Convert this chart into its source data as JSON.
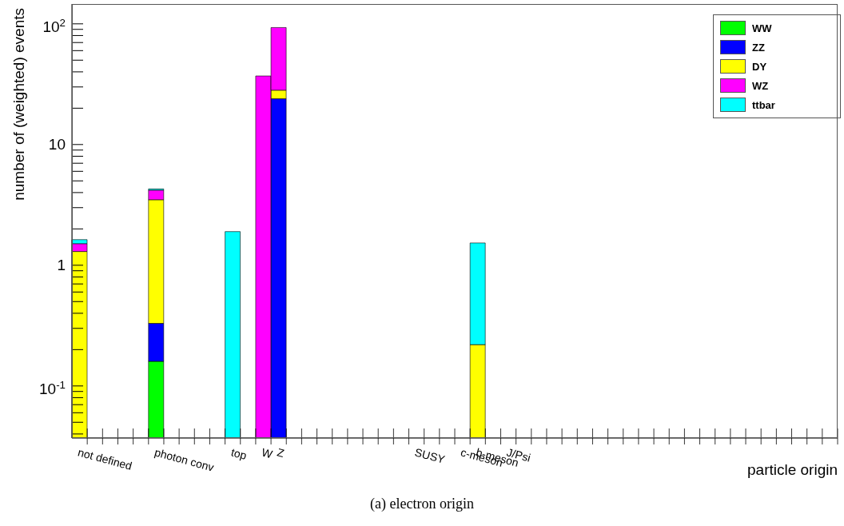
{
  "chart_data": {
    "type": "bar",
    "stacked": true,
    "log": "y",
    "grid": false,
    "legend": "top right",
    "xlabel": "particle origin",
    "ylabel": "number of (weighted) events",
    "annotations": [
      "(a) electron origin"
    ],
    "categories": [
      "not defined",
      null,
      null,
      null,
      null,
      "photon conv",
      null,
      null,
      null,
      null,
      "top",
      null,
      "W",
      "Z",
      null,
      null,
      null,
      null,
      null,
      null,
      null,
      null,
      "SUSY",
      null,
      null,
      "c-meson",
      "b-meson",
      null,
      "J/Psi",
      null,
      null,
      null,
      null,
      null,
      null,
      null,
      null,
      null,
      null,
      null,
      null,
      null,
      null,
      null,
      null,
      null,
      null,
      null,
      null,
      null
    ],
    "ylim": [
      0.037,
      146
    ],
    "yticks": [
      {
        "value": 0.04,
        "label": null
      },
      {
        "value": 0.05,
        "label": null
      },
      {
        "value": 0.06,
        "label": null
      },
      {
        "value": 0.07,
        "label": null
      },
      {
        "value": 0.08,
        "label": null
      },
      {
        "value": 0.09,
        "label": null
      },
      {
        "value": 0.1,
        "label": "10$^{-1}$"
      },
      {
        "value": 0.2,
        "label": null
      },
      {
        "value": 0.3,
        "label": null
      },
      {
        "value": 0.4,
        "label": null
      },
      {
        "value": 0.5,
        "label": null
      },
      {
        "value": 0.6,
        "label": null
      },
      {
        "value": 0.7,
        "label": null
      },
      {
        "value": 0.8,
        "label": null
      },
      {
        "value": 0.9,
        "label": null
      },
      1,
      {
        "value": 2,
        "label": null
      },
      {
        "value": 3,
        "label": null
      },
      {
        "value": 4,
        "label": null
      },
      {
        "value": 5,
        "label": null
      },
      {
        "value": 6,
        "label": null
      },
      {
        "value": 7,
        "label": null
      },
      {
        "value": 8,
        "label": null
      },
      {
        "value": 9,
        "label": null
      },
      10,
      {
        "value": 20,
        "label": null
      },
      {
        "value": 30,
        "label": null
      },
      {
        "value": 40,
        "label": null
      },
      {
        "value": 50,
        "label": null
      },
      {
        "value": 60,
        "label": null
      },
      {
        "value": 70,
        "label": null
      },
      {
        "value": 80,
        "label": null
      },
      {
        "value": 90,
        "label": null
      },
      {
        "value": 100,
        "label": "10$^{2}$"
      }
    ],
    "series": [
      {
        "name": "WW",
        "color": "#00ff00",
        "values": [
          null,
          null,
          null,
          null,
          null,
          0.16,
          null,
          null,
          null,
          null,
          null,
          null,
          null,
          null,
          null,
          null,
          null,
          null,
          null,
          null,
          null,
          null,
          null,
          null,
          null,
          null,
          null,
          null,
          null,
          null,
          null,
          null,
          null,
          null,
          null,
          null,
          null,
          null,
          null,
          null,
          null,
          null,
          null,
          null,
          null,
          null,
          null,
          null,
          null,
          null
        ]
      },
      {
        "name": "ZZ",
        "color": "#0000ff",
        "values": [
          null,
          null,
          null,
          null,
          null,
          0.17,
          null,
          null,
          null,
          null,
          null,
          null,
          null,
          24,
          null,
          null,
          null,
          null,
          null,
          null,
          null,
          null,
          null,
          null,
          null,
          null,
          null,
          null,
          null,
          null,
          null,
          null,
          null,
          null,
          null,
          null,
          null,
          null,
          null,
          null,
          null,
          null,
          null,
          null,
          null,
          null,
          null,
          null,
          null,
          null
        ]
      },
      {
        "name": "DY",
        "color": "#ffff00",
        "values": [
          1.3,
          null,
          null,
          null,
          null,
          3.16,
          null,
          null,
          null,
          null,
          null,
          null,
          null,
          4.2,
          null,
          null,
          null,
          null,
          null,
          null,
          null,
          null,
          null,
          null,
          null,
          null,
          0.22,
          null,
          null,
          null,
          null,
          null,
          null,
          null,
          null,
          null,
          null,
          null,
          null,
          null,
          null,
          null,
          null,
          null,
          null,
          null,
          null,
          null,
          null,
          null
        ]
      },
      {
        "name": "WZ",
        "color": "#ff00ff",
        "values": [
          0.21,
          null,
          null,
          null,
          null,
          0.7,
          null,
          null,
          null,
          null,
          null,
          null,
          37,
          65,
          null,
          null,
          null,
          null,
          null,
          null,
          null,
          null,
          null,
          null,
          null,
          null,
          null,
          null,
          null,
          null,
          null,
          null,
          null,
          null,
          null,
          null,
          null,
          null,
          null,
          null,
          null,
          null,
          null,
          null,
          null,
          null,
          null,
          null,
          null,
          null
        ]
      },
      {
        "name": "ttbar",
        "color": "#00ffff",
        "values": [
          0.12,
          null,
          null,
          null,
          null,
          0.1,
          null,
          null,
          null,
          null,
          1.9,
          null,
          null,
          null,
          null,
          null,
          null,
          null,
          null,
          null,
          null,
          null,
          null,
          null,
          null,
          null,
          1.31,
          null,
          null,
          null,
          null,
          null,
          null,
          null,
          null,
          null,
          null,
          null,
          null,
          null,
          null,
          null,
          null,
          null,
          null,
          null,
          null,
          null,
          null,
          null
        ]
      }
    ]
  }
}
